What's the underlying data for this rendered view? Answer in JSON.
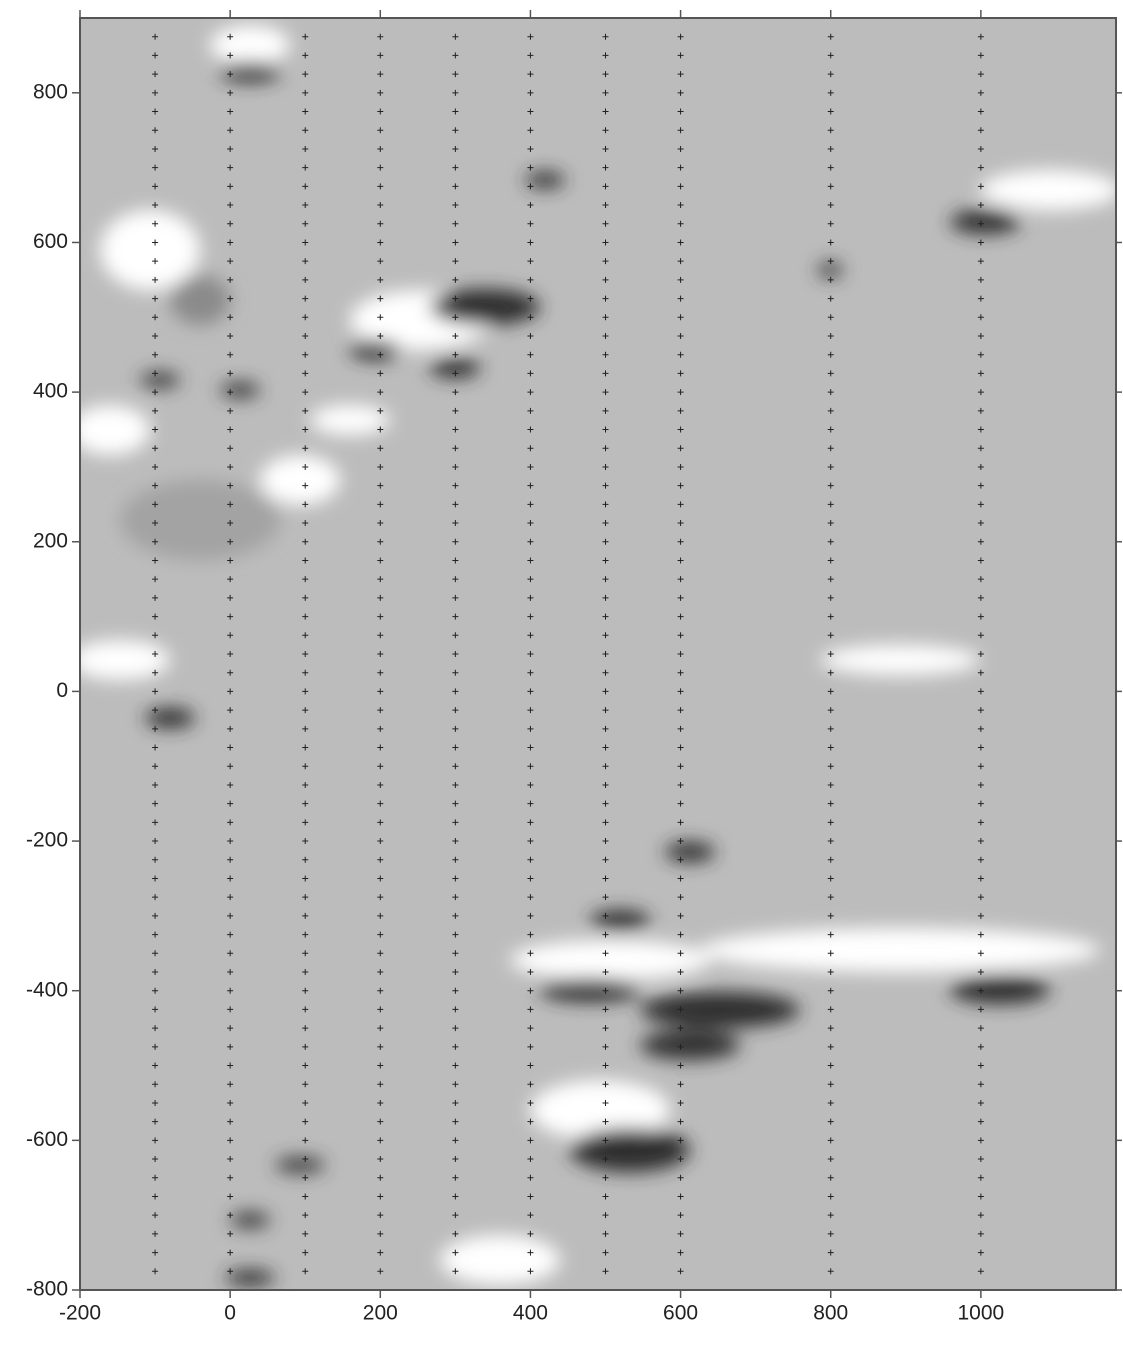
{
  "chart_data": {
    "type": "survey-map",
    "xlim": [
      -200,
      1180
    ],
    "ylim": [
      -800,
      900
    ],
    "xticks": [
      -200,
      0,
      200,
      400,
      600,
      800,
      1000
    ],
    "yticks": [
      -800,
      -600,
      -400,
      -200,
      0,
      200,
      400,
      600,
      800
    ],
    "stations": {
      "x": [
        -100,
        0,
        100,
        200,
        300,
        400,
        500,
        600,
        800,
        1000
      ],
      "y": [
        -775,
        -750,
        -725,
        -700,
        -675,
        -650,
        -625,
        -600,
        -575,
        -550,
        -525,
        -500,
        -475,
        -450,
        -425,
        -400,
        -375,
        -350,
        -325,
        -300,
        -275,
        -250,
        -225,
        -200,
        -175,
        -150,
        -125,
        -100,
        -75,
        -50,
        -25,
        0,
        25,
        50,
        75,
        100,
        125,
        150,
        175,
        200,
        225,
        250,
        275,
        300,
        325,
        350,
        375,
        400,
        425,
        450,
        475,
        500,
        525,
        550,
        575,
        600,
        625,
        650,
        675,
        700,
        725,
        750,
        775,
        800,
        825,
        850,
        875
      ],
      "color": "#222"
    }
  }
}
